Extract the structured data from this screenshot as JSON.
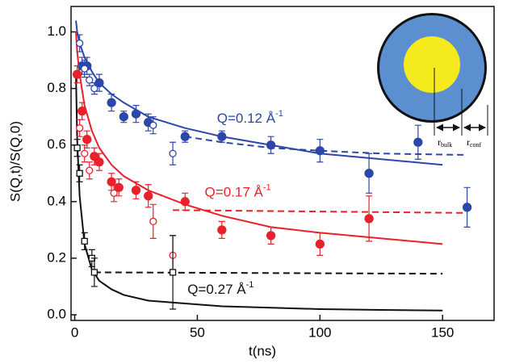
{
  "chart_data": {
    "type": "scatter",
    "xlabel": "t(ns)",
    "ylabel": "S(Q,t)/S(Q,0)",
    "xlim": [
      -1.5,
      171
    ],
    "ylim": [
      -0.02,
      1.09
    ],
    "xticks": [
      0,
      50,
      100,
      150
    ],
    "yticks": [
      {
        "value": 0,
        "label": "0.0"
      },
      {
        "value": 0.2,
        "label": "0.2"
      },
      {
        "value": 0.4,
        "label": "0.4"
      },
      {
        "value": 0.6,
        "label": "0.6"
      },
      {
        "value": 0.8,
        "label": "0.8"
      },
      {
        "value": 1,
        "label": "1.0"
      }
    ],
    "series": [
      {
        "color": "#2b47a8",
        "marker": "circle",
        "filled": true,
        "x": [
          3,
          5,
          10,
          15,
          20,
          25,
          30,
          45,
          60,
          80,
          100,
          120,
          140,
          160
        ],
        "values": [
          0.88,
          0.88,
          0.82,
          0.75,
          0.7,
          0.71,
          0.68,
          0.63,
          0.63,
          0.6,
          0.58,
          0.5,
          0.61,
          0.38
        ],
        "errors": [
          0.03,
          0.03,
          0.03,
          0.03,
          0.02,
          0.03,
          0.03,
          0.02,
          0.02,
          0.03,
          0.04,
          0.07,
          0.06,
          0.07
        ]
      },
      {
        "color": "#2b47a8",
        "marker": "circle",
        "filled": false,
        "x": [
          2,
          4,
          6,
          8,
          32,
          40
        ],
        "values": [
          0.96,
          0.87,
          0.83,
          0.8,
          0.67,
          0.57
        ],
        "errors": [
          0.03,
          0.03,
          0.02,
          0.02,
          0.03,
          0.04
        ]
      },
      {
        "color": "#e8212a",
        "marker": "circle",
        "filled": true,
        "x": [
          1,
          3,
          5,
          8,
          10,
          15,
          18,
          25,
          30,
          45,
          60,
          80,
          100,
          120
        ],
        "values": [
          0.85,
          0.72,
          0.62,
          0.56,
          0.54,
          0.47,
          0.45,
          0.44,
          0.42,
          0.4,
          0.3,
          0.28,
          0.25,
          0.34
        ],
        "errors": [
          0.03,
          0.03,
          0.03,
          0.03,
          0.03,
          0.03,
          0.03,
          0.03,
          0.04,
          0.03,
          0.03,
          0.03,
          0.04,
          0.08
        ]
      },
      {
        "color": "#e8212a",
        "marker": "circle",
        "filled": false,
        "x": [
          2,
          4,
          6,
          16,
          32,
          40
        ],
        "values": [
          0.66,
          0.57,
          0.51,
          0.43,
          0.33,
          0.21
        ],
        "errors": [
          0.03,
          0.03,
          0.03,
          0.03,
          0.06,
          0.07
        ]
      },
      {
        "color": "#111111",
        "marker": "square",
        "filled": false,
        "x": [
          1,
          2,
          4,
          7,
          8,
          40
        ],
        "values": [
          0.59,
          0.5,
          0.26,
          0.2,
          0.15,
          0.15
        ],
        "errors": [
          0.03,
          0.03,
          0.03,
          0.03,
          0.05,
          0.13
        ]
      }
    ],
    "lines": [
      {
        "color": "#2b47a8",
        "style": "solid",
        "x": [
          0.5,
          1,
          2,
          4,
          7,
          10,
          15,
          20,
          30,
          45,
          60,
          80,
          100,
          125,
          150
        ],
        "values": [
          1.04,
          1.0,
          0.96,
          0.91,
          0.86,
          0.82,
          0.78,
          0.75,
          0.7,
          0.66,
          0.63,
          0.6,
          0.57,
          0.55,
          0.53
        ]
      },
      {
        "color": "#e8212a",
        "style": "solid",
        "x": [
          0.5,
          1,
          2,
          4,
          7,
          10,
          15,
          20,
          30,
          45,
          60,
          80,
          100,
          125,
          150
        ],
        "values": [
          1.0,
          0.93,
          0.85,
          0.74,
          0.65,
          0.59,
          0.53,
          0.49,
          0.44,
          0.39,
          0.35,
          0.31,
          0.29,
          0.27,
          0.25
        ]
      },
      {
        "color": "#111111",
        "style": "solid",
        "x": [
          0.5,
          1,
          2,
          4,
          7,
          10,
          15,
          20,
          30,
          45,
          60,
          80,
          100,
          125,
          150
        ],
        "values": [
          0.85,
          0.62,
          0.42,
          0.25,
          0.16,
          0.12,
          0.09,
          0.07,
          0.05,
          0.04,
          0.03,
          0.025,
          0.02,
          0.017,
          0.015
        ]
      },
      {
        "color": "#2b47a8",
        "style": "dashed",
        "x": [
          45,
          60,
          80,
          100,
          125,
          160
        ],
        "values": [
          0.63,
          0.61,
          0.59,
          0.58,
          0.57,
          0.565
        ]
      },
      {
        "color": "#e8212a",
        "style": "dashed",
        "x": [
          40,
          160
        ],
        "values": [
          0.37,
          0.36
        ]
      },
      {
        "color": "#111111",
        "style": "dashed",
        "x": [
          8,
          150
        ],
        "values": [
          0.15,
          0.145
        ]
      }
    ],
    "annotations": [
      {
        "text": "Q=0.12 Å",
        "sup": "-1",
        "color": "#2b47a8",
        "x": 58,
        "y": 0.69
      },
      {
        "text": "Q=0.17 Å",
        "sup": "-1",
        "color": "#e8212a",
        "x": 53,
        "y": 0.43
      },
      {
        "text": "Q=0.27 Å",
        "sup": "-1",
        "color": "#111111",
        "x": 46,
        "y": 0.085
      }
    ],
    "inset_labels": [
      {
        "main": "r",
        "sub": "bulk"
      },
      {
        "main": "r",
        "sub": "conf"
      }
    ]
  }
}
